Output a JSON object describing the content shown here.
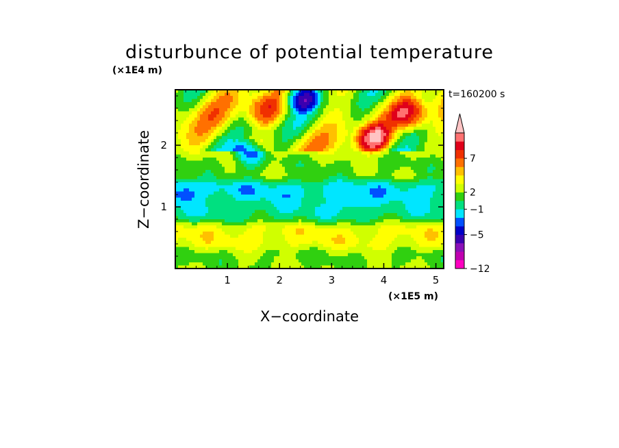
{
  "chart_data": {
    "type": "heatmap",
    "title": "disturbunce of potential temperature",
    "time_label": "t=160200 s",
    "xlabel": "X−coordinate",
    "ylabel": "Z−coordinate",
    "x_unit": "(×1E5 m)",
    "y_unit": "(×1E4 m)",
    "xlim": [
      0,
      5.15
    ],
    "ylim": [
      0,
      2.9
    ],
    "x_ticks": [
      1,
      2,
      3,
      4,
      5
    ],
    "y_ticks": [
      1,
      2
    ],
    "colorbar": {
      "tick_labels": [
        "7",
        "2",
        "−1",
        "−5",
        "−12"
      ],
      "tick_levels": [
        13,
        9,
        7,
        4,
        0
      ],
      "colors": [
        "#ff00c0",
        "#c000b0",
        "#8a10b8",
        "#3a00b0",
        "#0000c8",
        "#0050ff",
        "#00e6ff",
        "#00e080",
        "#30d010",
        "#d0ff00",
        "#ffff00",
        "#ffc000",
        "#ff7000",
        "#f03000",
        "#e0001a",
        "#ff7070",
        "#ffc4c4"
      ]
    },
    "field_features": [
      {
        "kind": "band",
        "z": 0.95,
        "level": 6
      },
      {
        "kind": "band",
        "z": 1.25,
        "level": 5
      },
      {
        "kind": "band",
        "z": 0.5,
        "level": 10
      },
      {
        "kind": "band",
        "z": 0.15,
        "level": 8
      },
      {
        "kind": "band",
        "z": 1.65,
        "level": 8
      },
      {
        "kind": "blob",
        "x": 0.15,
        "z": 1.25,
        "level": 3
      },
      {
        "kind": "blob",
        "x": 1.7,
        "z": 2.55,
        "level": 13
      },
      {
        "kind": "blob",
        "x": 2.4,
        "z": 2.8,
        "level": 2
      },
      {
        "kind": "blob",
        "x": 3.4,
        "z": 1.05,
        "level": 4
      },
      {
        "kind": "blob",
        "x": 3.8,
        "z": 2.1,
        "level": 15
      },
      {
        "kind": "blob",
        "x": 4.5,
        "z": 2.5,
        "level": 14
      },
      {
        "kind": "blob",
        "x": 1.4,
        "z": 1.8,
        "level": 3
      }
    ]
  }
}
